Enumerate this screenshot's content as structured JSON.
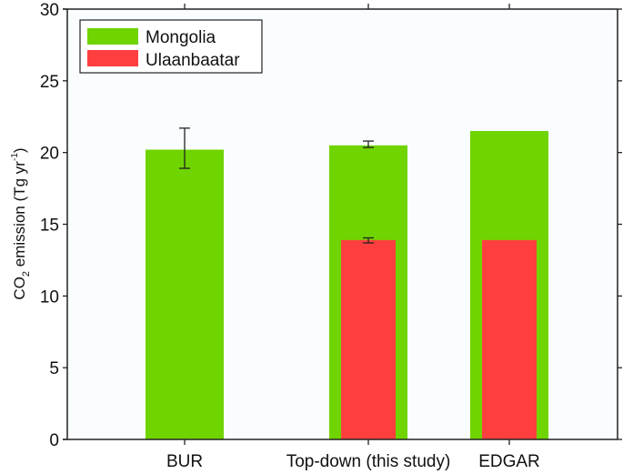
{
  "chart_data": {
    "type": "bar",
    "title": "",
    "xlabel": "",
    "ylabel": "CO2 emission (Tg yr-1)",
    "ylabel_parts": {
      "main": "CO",
      "sub": "2",
      "rest": " emission (Tg yr",
      "sup": "-1",
      "end": ")"
    },
    "ylim": [
      0,
      30
    ],
    "yticks": [
      0,
      5,
      10,
      15,
      20,
      25,
      30
    ],
    "ytick_labels": [
      "0",
      "5",
      "10",
      "15",
      "20",
      "25",
      "30"
    ],
    "categories": [
      "BUR",
      "Top-down (this study)",
      "EDGAR"
    ],
    "grid": false,
    "legend_position": "top-left",
    "series": [
      {
        "name": "Mongolia",
        "color": "#6fd400",
        "values": [
          20.2,
          20.5,
          21.5
        ],
        "error_low": [
          18.9,
          20.35,
          null
        ],
        "error_high": [
          21.7,
          20.8,
          null
        ]
      },
      {
        "name": "Ulaanbaatar",
        "color": "#ff3f3f",
        "values": [
          null,
          13.9,
          13.9
        ],
        "error_low": [
          null,
          13.7,
          null
        ],
        "error_high": [
          null,
          14.05,
          null
        ]
      }
    ],
    "colors": {
      "background": "#f9fdff",
      "axis": "#222222"
    }
  }
}
